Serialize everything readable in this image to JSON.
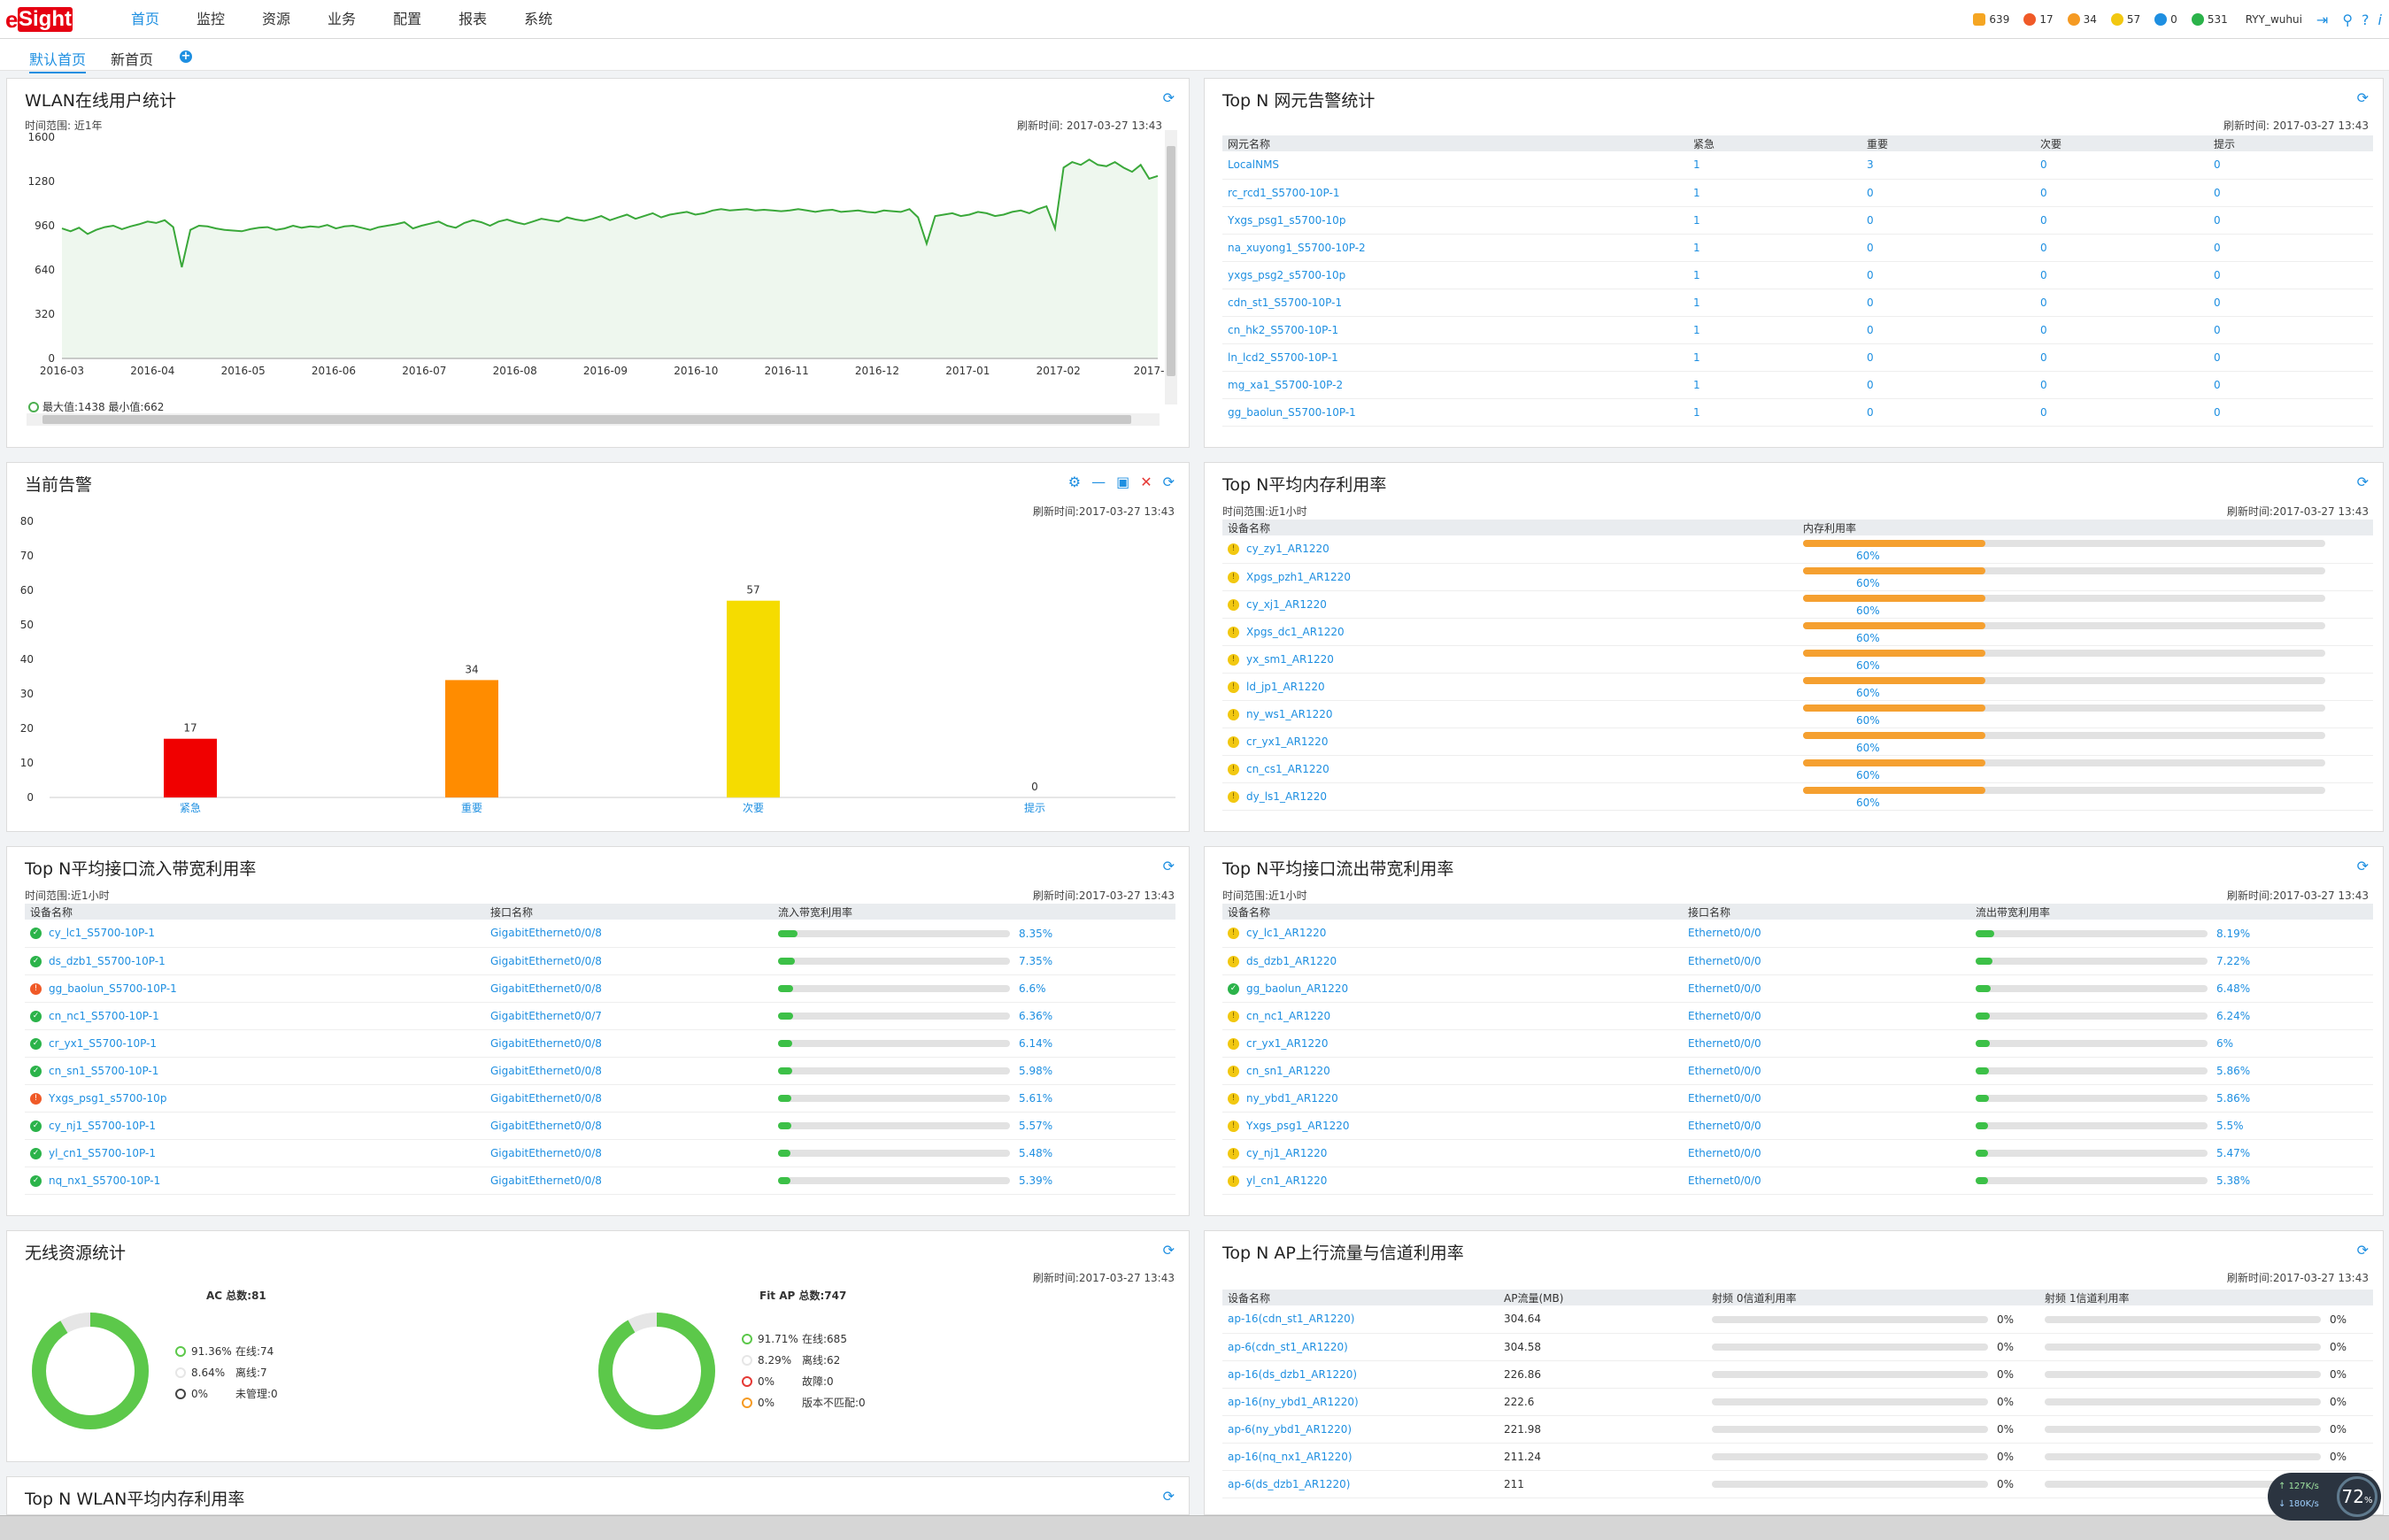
{
  "header": {
    "logo_e": "e",
    "logo_sight": "Sight",
    "nav": [
      "首页",
      "监控",
      "资源",
      "业务",
      "配置",
      "报表",
      "系统"
    ],
    "status": [
      {
        "icon": "bell-icon",
        "color": "#f5a623",
        "value": "639"
      },
      {
        "icon": "critical-alarm-icon",
        "color": "#f05a28",
        "value": "17"
      },
      {
        "icon": "major-alarm-icon",
        "color": "#f59a23",
        "value": "34"
      },
      {
        "icon": "minor-alarm-icon",
        "color": "#f2c811",
        "value": "57"
      },
      {
        "icon": "info-alarm-icon",
        "color": "#1e8fe1",
        "value": "0"
      },
      {
        "icon": "normal-icon",
        "color": "#2bb34a",
        "value": "531"
      }
    ],
    "user": "RYY_wuhui"
  },
  "subnav": {
    "tabs": [
      "默认首页",
      "新首页"
    ],
    "add": "+"
  },
  "wlan": {
    "title": "WLAN在线用户统计",
    "range": "时间范围: 近1年",
    "refresh": "刷新时间: 2017-03-27 13:43",
    "legend": "最大值:1438 最小值:662"
  },
  "topn_alarm": {
    "title": "Top N 网元告警统计",
    "refresh": "刷新时间: 2017-03-27 13:43",
    "headers": [
      "网元名称",
      "紧急",
      "重要",
      "次要",
      "提示"
    ],
    "rows": [
      [
        "LocalNMS",
        "1",
        "3",
        "0",
        "0"
      ],
      [
        "rc_rcd1_S5700-10P-1",
        "1",
        "0",
        "0",
        "0"
      ],
      [
        "Yxgs_psg1_s5700-10p",
        "1",
        "0",
        "0",
        "0"
      ],
      [
        "na_xuyong1_S5700-10P-2",
        "1",
        "0",
        "0",
        "0"
      ],
      [
        "yxgs_psg2_s5700-10p",
        "1",
        "0",
        "0",
        "0"
      ],
      [
        "cdn_st1_S5700-10P-1",
        "1",
        "0",
        "0",
        "0"
      ],
      [
        "cn_hk2_S5700-10P-1",
        "1",
        "0",
        "0",
        "0"
      ],
      [
        "ln_lcd2_S5700-10P-1",
        "1",
        "0",
        "0",
        "0"
      ],
      [
        "mg_xa1_S5700-10P-2",
        "1",
        "0",
        "0",
        "0"
      ],
      [
        "gg_baolun_S5700-10P-1",
        "1",
        "0",
        "0",
        "0"
      ]
    ]
  },
  "current_alarm": {
    "title": "当前告警",
    "refresh": "刷新时间:2017-03-27 13:43"
  },
  "topn_mem": {
    "title": "Top N平均内存利用率",
    "range": "时间范围:近1小时",
    "refresh": "刷新时间:2017-03-27 13:43",
    "headers": [
      "设备名称",
      "内存利用率"
    ],
    "rows": [
      {
        "name": "cy_zy1_AR1220",
        "value": 60,
        "label": "60%"
      },
      {
        "name": "Xpgs_pzh1_AR1220",
        "value": 60,
        "label": "60%"
      },
      {
        "name": "cy_xj1_AR1220",
        "value": 60,
        "label": "60%"
      },
      {
        "name": "Xpgs_dc1_AR1220",
        "value": 60,
        "label": "60%"
      },
      {
        "name": "yx_sm1_AR1220",
        "value": 60,
        "label": "60%"
      },
      {
        "name": "ld_jp1_AR1220",
        "value": 60,
        "label": "60%"
      },
      {
        "name": "ny_ws1_AR1220",
        "value": 60,
        "label": "60%"
      },
      {
        "name": "cr_yx1_AR1220",
        "value": 60,
        "label": "60%"
      },
      {
        "name": "cn_cs1_AR1220",
        "value": 60,
        "label": "60%"
      },
      {
        "name": "dy_ls1_AR1220",
        "value": 60,
        "label": "60%"
      }
    ]
  },
  "topn_in": {
    "title": "Top N平均接口流入带宽利用率",
    "range": "时间范围:近1小时",
    "refresh": "刷新时间:2017-03-27 13:43",
    "headers": [
      "设备名称",
      "接口名称",
      "流入带宽利用率"
    ],
    "rows": [
      {
        "s": "ok",
        "name": "cy_lc1_S5700-10P-1",
        "intf": "GigabitEthernet0/0/8",
        "value": 8.35,
        "label": "8.35%"
      },
      {
        "s": "ok",
        "name": "ds_dzb1_S5700-10P-1",
        "intf": "GigabitEthernet0/0/8",
        "value": 7.35,
        "label": "7.35%"
      },
      {
        "s": "crit",
        "name": "gg_baolun_S5700-10P-1",
        "intf": "GigabitEthernet0/0/8",
        "value": 6.6,
        "label": "6.6%"
      },
      {
        "s": "ok",
        "name": "cn_nc1_S5700-10P-1",
        "intf": "GigabitEthernet0/0/7",
        "value": 6.36,
        "label": "6.36%"
      },
      {
        "s": "ok",
        "name": "cr_yx1_S5700-10P-1",
        "intf": "GigabitEthernet0/0/8",
        "value": 6.14,
        "label": "6.14%"
      },
      {
        "s": "ok",
        "name": "cn_sn1_S5700-10P-1",
        "intf": "GigabitEthernet0/0/8",
        "value": 5.98,
        "label": "5.98%"
      },
      {
        "s": "crit",
        "name": "Yxgs_psg1_s5700-10p",
        "intf": "GigabitEthernet0/0/8",
        "value": 5.61,
        "label": "5.61%"
      },
      {
        "s": "ok",
        "name": "cy_nj1_S5700-10P-1",
        "intf": "GigabitEthernet0/0/8",
        "value": 5.57,
        "label": "5.57%"
      },
      {
        "s": "ok",
        "name": "yl_cn1_S5700-10P-1",
        "intf": "GigabitEthernet0/0/8",
        "value": 5.48,
        "label": "5.48%"
      },
      {
        "s": "ok",
        "name": "nq_nx1_S5700-10P-1",
        "intf": "GigabitEthernet0/0/8",
        "value": 5.39,
        "label": "5.39%"
      }
    ]
  },
  "topn_out": {
    "title": "Top N平均接口流出带宽利用率",
    "range": "时间范围:近1小时",
    "refresh": "刷新时间:2017-03-27 13:43",
    "headers": [
      "设备名称",
      "接口名称",
      "流出带宽利用率"
    ],
    "rows": [
      {
        "s": "warn",
        "name": "cy_lc1_AR1220",
        "intf": "Ethernet0/0/0",
        "value": 8.19,
        "label": "8.19%"
      },
      {
        "s": "warn",
        "name": "ds_dzb1_AR1220",
        "intf": "Ethernet0/0/0",
        "value": 7.22,
        "label": "7.22%"
      },
      {
        "s": "ok",
        "name": "gg_baolun_AR1220",
        "intf": "Ethernet0/0/0",
        "value": 6.48,
        "label": "6.48%"
      },
      {
        "s": "warn",
        "name": "cn_nc1_AR1220",
        "intf": "Ethernet0/0/0",
        "value": 6.24,
        "label": "6.24%"
      },
      {
        "s": "warn",
        "name": "cr_yx1_AR1220",
        "intf": "Ethernet0/0/0",
        "value": 6,
        "label": "6%"
      },
      {
        "s": "warn",
        "name": "cn_sn1_AR1220",
        "intf": "Ethernet0/0/0",
        "value": 5.86,
        "label": "5.86%"
      },
      {
        "s": "warn",
        "name": "ny_ybd1_AR1220",
        "intf": "Ethernet0/0/0",
        "value": 5.86,
        "label": "5.86%"
      },
      {
        "s": "warn",
        "name": "Yxgs_psg1_AR1220",
        "intf": "Ethernet0/0/0",
        "value": 5.5,
        "label": "5.5%"
      },
      {
        "s": "warn",
        "name": "cy_nj1_AR1220",
        "intf": "Ethernet0/0/0",
        "value": 5.47,
        "label": "5.47%"
      },
      {
        "s": "warn",
        "name": "yl_cn1_AR1220",
        "intf": "Ethernet0/0/0",
        "value": 5.38,
        "label": "5.38%"
      }
    ]
  },
  "wireless": {
    "title": "无线资源统计",
    "refresh": "刷新时间:2017-03-27 13:43",
    "ac": {
      "title": "AC 总数:81",
      "items": [
        {
          "pct": "91.36%",
          "label": "在线:74",
          "color": "#5cc84a"
        },
        {
          "pct": "8.64%",
          "label": "离线:7",
          "color": "#e6e6e6"
        },
        {
          "pct": "0%",
          "label": "未管理:0",
          "color": "#444444"
        }
      ]
    },
    "ap": {
      "title": "Fit AP 总数:747",
      "items": [
        {
          "pct": "91.71%",
          "label": "在线:685",
          "color": "#5cc84a"
        },
        {
          "pct": "8.29%",
          "label": "离线:62",
          "color": "#e6e6e6"
        },
        {
          "pct": "0%",
          "label": "故障:0",
          "color": "#e53935"
        },
        {
          "pct": "0%",
          "label": "版本不匹配:0",
          "color": "#f59a23"
        }
      ]
    }
  },
  "topn_ap": {
    "title": "Top N AP上行流量与信道利用率",
    "refresh": "刷新时间:2017-03-27 13:43",
    "headers": [
      "设备名称",
      "AP流量(MB)",
      "射频 0信道利用率",
      "射频 1信道利用率"
    ],
    "rows": [
      [
        "ap-16(cdn_st1_AR1220)",
        "304.64",
        "0%",
        "0%"
      ],
      [
        "ap-6(cdn_st1_AR1220)",
        "304.58",
        "0%",
        "0%"
      ],
      [
        "ap-16(ds_dzb1_AR1220)",
        "226.86",
        "0%",
        "0%"
      ],
      [
        "ap-16(ny_ybd1_AR1220)",
        "222.6",
        "0%",
        "0%"
      ],
      [
        "ap-6(ny_ybd1_AR1220)",
        "221.98",
        "0%",
        "0%"
      ],
      [
        "ap-16(nq_nx1_AR1220)",
        "211.24",
        "0%",
        "0%"
      ],
      [
        "ap-6(ds_dzb1_AR1220)",
        "211",
        "0%",
        "0%"
      ]
    ]
  },
  "topn_wlan_mem": {
    "title": "Top N WLAN平均内存利用率"
  },
  "net_widget": {
    "up": "127K/s",
    "down": "180K/s",
    "cpu": "72",
    "unit": "%"
  },
  "chart_data": [
    {
      "type": "line",
      "title": "",
      "ylim": [
        0,
        1600
      ],
      "yticks": [
        0,
        320,
        640,
        960,
        1280,
        1600
      ],
      "xticks": [
        "2016-03",
        "2016-04",
        "2016-05",
        "2016-06",
        "2016-07",
        "2016-08",
        "2016-09",
        "2016-10",
        "2016-11",
        "2016-12",
        "2017-01",
        "2017-02",
        "2017-"
      ],
      "series": [
        {
          "values": [
            940,
            920,
            945,
            900,
            930,
            950,
            960,
            935,
            955,
            970,
            990,
            980,
            1000,
            950,
            660,
            930,
            960,
            955,
            940,
            930,
            925,
            920,
            935,
            945,
            950,
            930,
            940,
            960,
            945,
            955,
            950,
            965,
            940,
            955,
            960,
            945,
            930,
            950,
            960,
            970,
            985,
            940,
            960,
            975,
            990,
            960,
            945,
            980,
            1000,
            985,
            960,
            990,
            1005,
            985,
            970,
            990,
            1010,
            1000,
            990,
            1020,
            1005,
            995,
            1010,
            1030,
            1000,
            1020,
            1040,
            1010,
            1030,
            1050,
            1020,
            1040,
            1050,
            1060,
            1040,
            1050,
            1070,
            1080,
            1070,
            1075,
            1080,
            1070,
            1075,
            1070,
            1065,
            1070,
            1080,
            1070,
            1060,
            1070,
            1075,
            1060,
            1065,
            1070,
            1060,
            1055,
            1070,
            1065,
            1060,
            1080,
            1020,
            830,
            1030,
            1040,
            1050,
            1030,
            1040,
            1060,
            1050,
            1030,
            1040,
            1060,
            1070,
            1050,
            1080,
            1100,
            940,
            1380,
            1420,
            1400,
            1438,
            1400,
            1390,
            1420,
            1380,
            1350,
            1400,
            1300,
            1320
          ]
        }
      ]
    },
    {
      "type": "bar",
      "title": "",
      "ylim": [
        0,
        80
      ],
      "yticks": [
        0,
        10,
        20,
        30,
        40,
        50,
        60,
        70,
        80
      ],
      "categories": [
        "紧急",
        "重要",
        "次要",
        "提示"
      ],
      "values": [
        17,
        34,
        57,
        0
      ],
      "colors": [
        "#f00000",
        "#ff8c00",
        "#f5dc00",
        "#cccccc"
      ]
    }
  ]
}
